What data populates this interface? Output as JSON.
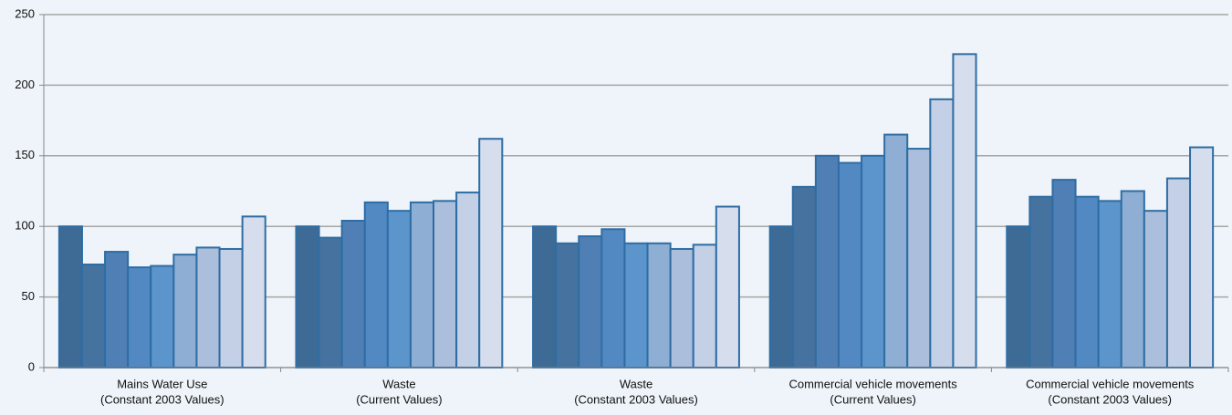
{
  "chart_data": {
    "type": "bar",
    "categories": [
      [
        "Mains Water Use",
        "(Constant 2003 Values)"
      ],
      [
        "Waste",
        "(Current Values)"
      ],
      [
        "Waste",
        "(Constant 2003 Values)"
      ],
      [
        "Commercial vehicle movements",
        "(Current Values)"
      ],
      [
        "Commercial vehicle movements",
        "(Constant 2003 Values)"
      ]
    ],
    "series": [
      {
        "color": "#3d6b95",
        "values": [
          100,
          100,
          100,
          100,
          100
        ]
      },
      {
        "color": "#46729f",
        "values": [
          73,
          92,
          88,
          128,
          121
        ]
      },
      {
        "color": "#4f7fb5",
        "values": [
          82,
          104,
          93,
          150,
          133
        ]
      },
      {
        "color": "#5389c2",
        "values": [
          71,
          117,
          98,
          145,
          121
        ]
      },
      {
        "color": "#5b95cc",
        "values": [
          72,
          111,
          88,
          150,
          118
        ]
      },
      {
        "color": "#8eaed3",
        "values": [
          80,
          117,
          88,
          165,
          125
        ]
      },
      {
        "color": "#abbfdc",
        "values": [
          85,
          118,
          84,
          155,
          111
        ]
      },
      {
        "color": "#c3d0e6",
        "values": [
          84,
          124,
          87,
          190,
          134
        ]
      },
      {
        "color": "#d6deee",
        "values": [
          107,
          162,
          114,
          222,
          156
        ]
      }
    ],
    "edgecolor": "#2e6da4",
    "ylim": [
      0,
      250
    ],
    "yticks": [
      0,
      50,
      100,
      150,
      200,
      250
    ],
    "grid": true
  }
}
